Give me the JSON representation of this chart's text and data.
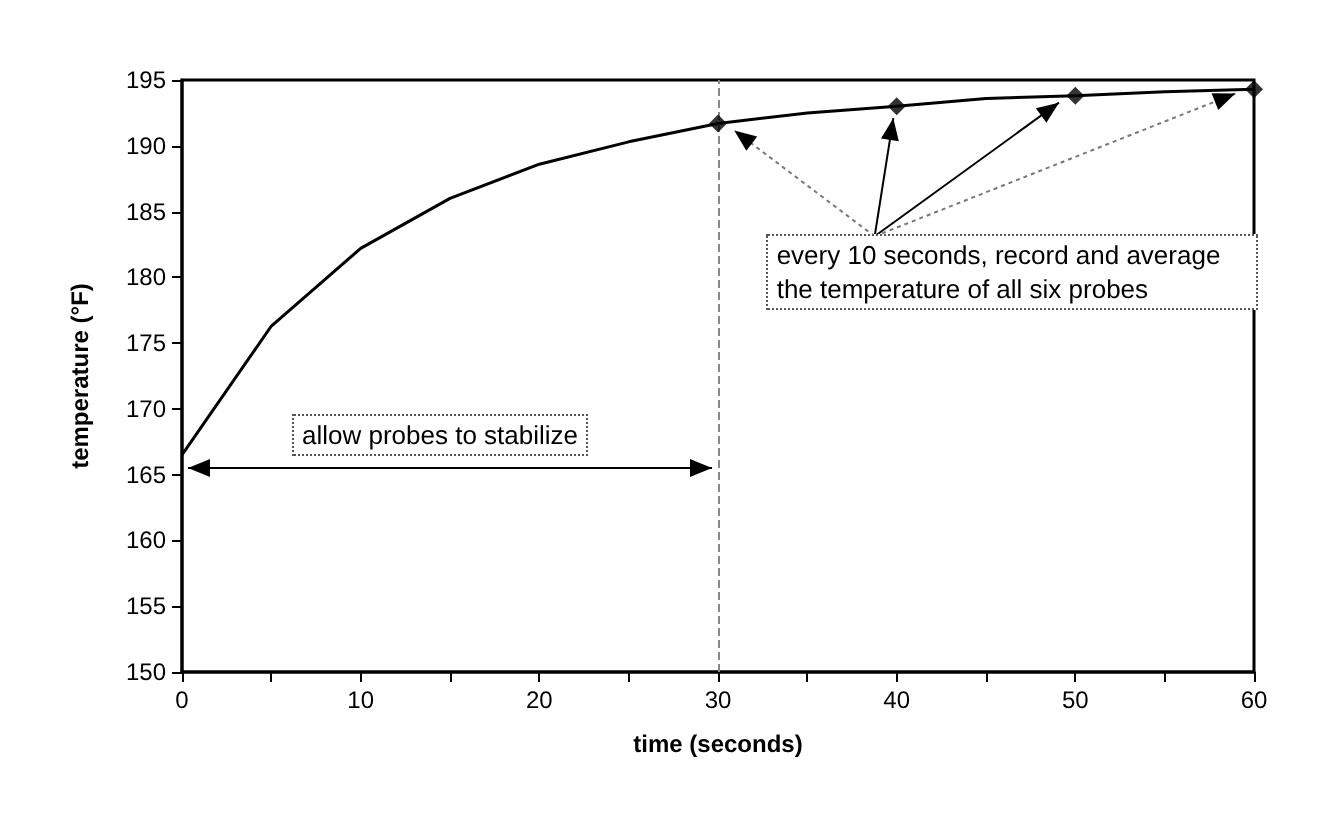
{
  "chart_data": {
    "type": "line",
    "xlabel": "time (seconds)",
    "ylabel": "temperature (°F)",
    "annotations": [
      "allow probes to stabilize",
      {
        "text": "every 10 seconds, record and average the temperature of all six probes",
        "x": 40,
        "y": 193.0
      }
    ],
    "series": [
      {
        "color": "#000000",
        "marker": "none",
        "x": [
          0,
          5,
          10,
          15,
          20,
          25,
          30,
          35,
          40,
          45,
          50,
          55,
          60
        ],
        "values": [
          166.5,
          176.3,
          182.2,
          186.0,
          188.6,
          190.3,
          191.7,
          192.5,
          193.0,
          193.6,
          193.8,
          194.1,
          194.3
        ]
      },
      {
        "type": "scatter",
        "color": "#000000",
        "marker": "diamond",
        "x": [
          30,
          40,
          50,
          60
        ],
        "values": [
          191.7,
          193.0,
          193.8,
          194.3
        ]
      }
    ],
    "ref_lines": [
      {
        "axis": "x",
        "value": 30,
        "color": "#888888",
        "line_style": "dashed"
      }
    ],
    "xlim": [
      0,
      60
    ],
    "xticks": [
      0,
      {
        "value": 5,
        "label": null
      },
      10,
      {
        "value": 15,
        "label": null
      },
      20,
      {
        "value": 25,
        "label": null
      },
      30,
      {
        "value": 35,
        "label": null
      },
      40,
      {
        "value": 45,
        "label": null
      },
      50,
      {
        "value": 55,
        "label": null
      },
      60
    ],
    "ylim": [
      150,
      195
    ],
    "yticks": [
      150,
      155,
      160,
      165,
      170,
      175,
      180,
      185,
      190,
      195
    ],
    "grid": false
  }
}
